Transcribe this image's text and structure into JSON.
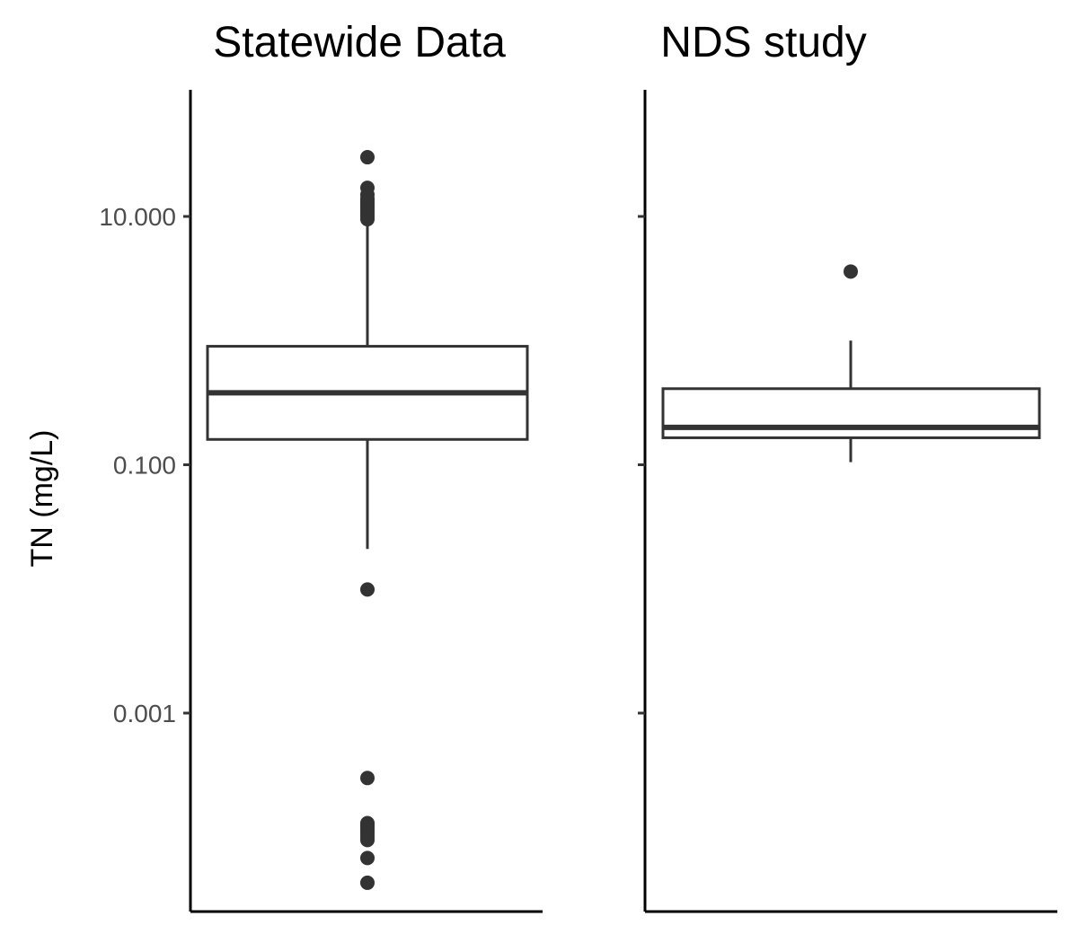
{
  "chart_data": {
    "type": "boxplot",
    "scale": "log10",
    "ylabel": "TN (mg/L)",
    "ylim": [
      3e-05,
      60
    ],
    "yticks": [
      {
        "value": 10,
        "label": "10.000"
      },
      {
        "value": 0.1,
        "label": "0.100"
      },
      {
        "value": 0.001,
        "label": "0.001"
      }
    ],
    "colors": {
      "box_line": "#333333",
      "box_fill": "#ffffff",
      "axis": "#000000",
      "tick_label": "#4d4d4d"
    },
    "panels": [
      {
        "title": "Statewide Data",
        "q1": 0.16,
        "median": 0.38,
        "q3": 0.9,
        "whisker_low": 0.021,
        "whisker_high": 9.0,
        "outliers": [
          30,
          17,
          15,
          14,
          13.5,
          13,
          12.5,
          12,
          11.5,
          11,
          10.5,
          10,
          9.5,
          0.0099,
          0.0003,
          0.00013,
          0.000125,
          0.00012,
          0.000115,
          0.00011,
          0.000105,
          0.0001,
          9.5e-05,
          6.8e-05,
          4.3e-05
        ]
      },
      {
        "title": "NDS study",
        "q1": 0.165,
        "median": 0.2,
        "q3": 0.41,
        "whisker_low": 0.105,
        "whisker_high": 1.0,
        "outliers": [
          3.6
        ]
      }
    ]
  }
}
